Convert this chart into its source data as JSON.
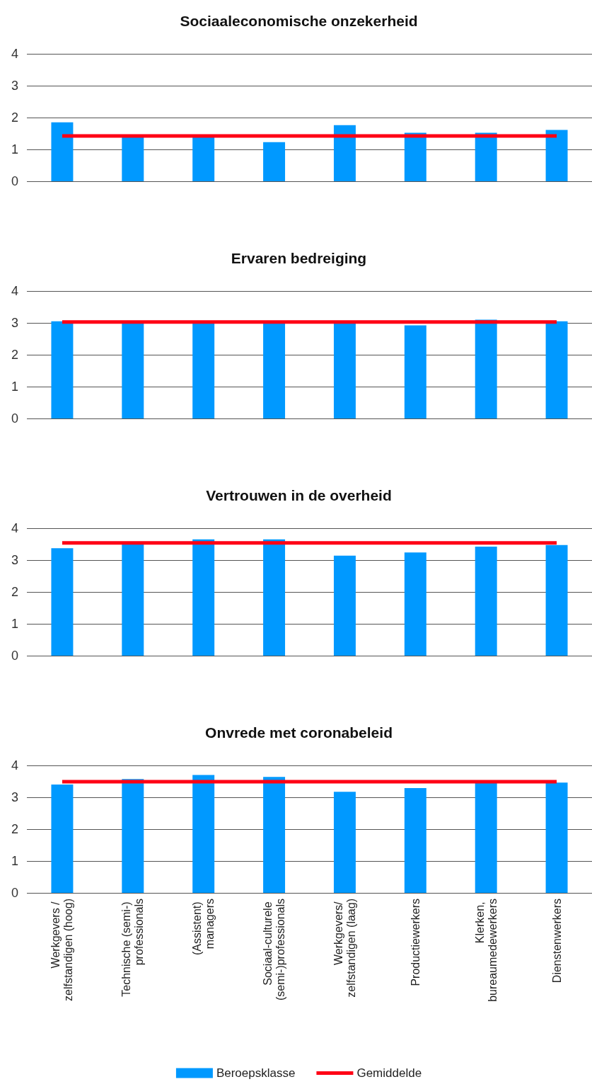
{
  "chart_data": [
    {
      "type": "bar",
      "title": "Sociaaleconomische onzekerheid",
      "categories": [
        "Werkgevers / zelfstandigen (hoog)",
        "Technische (semi-) professionals",
        "(Assistent) managers",
        "Sociaal-culturele (semi-)professionals",
        "Werkgevers/ zelfstandigen (laag)",
        "Productiewerkers",
        "Klerken, bureaumedewerkers",
        "Dienstenwerkers"
      ],
      "ylim": [
        0,
        4
      ],
      "yticks": [
        0,
        1,
        2,
        3,
        4
      ],
      "grid": "y",
      "legend": false,
      "tick_labels": "y",
      "marker": "none",
      "series": [
        {
          "color": "#0099ff",
          "values": [
            1.85,
            1.4,
            1.4,
            1.23,
            1.76,
            1.52,
            1.52,
            1.61
          ]
        },
        {
          "type": "line",
          "color": "#ff0015",
          "values": [
            1.42,
            1.42,
            1.42,
            1.42,
            1.42,
            1.42,
            1.42,
            1.42
          ]
        }
      ]
    },
    {
      "type": "bar",
      "title": "Ervaren bedreiging",
      "categories": [
        "Werkgevers / zelfstandigen (hoog)",
        "Technische (semi-) professionals",
        "(Assistent) managers",
        "Sociaal-culturele (semi-)professionals",
        "Werkgevers/ zelfstandigen (laag)",
        "Productiewerkers",
        "Klerken, bureaumedewerkers",
        "Dienstenwerkers"
      ],
      "ylim": [
        0,
        4
      ],
      "yticks": [
        0,
        1,
        2,
        3,
        4
      ],
      "grid": "y",
      "legend": false,
      "tick_labels": "y",
      "marker": "none",
      "series": [
        {
          "color": "#0099ff",
          "values": [
            3.05,
            3.0,
            3.0,
            3.0,
            3.0,
            2.92,
            3.1,
            3.05
          ]
        },
        {
          "type": "line",
          "color": "#ff0015",
          "values": [
            3.03,
            3.03,
            3.03,
            3.03,
            3.03,
            3.03,
            3.03,
            3.03
          ]
        }
      ]
    },
    {
      "type": "bar",
      "title": "Vertrouwen in de overheid",
      "categories": [
        "Werkgevers / zelfstandigen (hoog)",
        "Technische (semi-) professionals",
        "(Assistent) managers",
        "Sociaal-culturele (semi-)professionals",
        "Werkgevers/ zelfstandigen (laag)",
        "Productiewerkers",
        "Klerken, bureaumedewerkers",
        "Dienstenwerkers"
      ],
      "ylim": [
        0,
        4
      ],
      "yticks": [
        0,
        1,
        2,
        3,
        4
      ],
      "grid": "y",
      "legend": false,
      "tick_labels": "y",
      "marker": "none",
      "series": [
        {
          "color": "#0099ff",
          "values": [
            3.37,
            3.5,
            3.65,
            3.65,
            3.14,
            3.24,
            3.42,
            3.47
          ]
        },
        {
          "type": "line",
          "color": "#ff0015",
          "values": [
            3.54,
            3.54,
            3.54,
            3.54,
            3.54,
            3.54,
            3.54,
            3.54
          ]
        }
      ]
    },
    {
      "type": "bar",
      "title": "Onvrede met coronabeleid",
      "categories": [
        "Werkgevers / zelfstandigen (hoog)",
        "Technische (semi-) professionals",
        "(Assistent) managers",
        "Sociaal-culturele (semi-)professionals",
        "Werkgevers/ zelfstandigen (laag)",
        "Productiewerkers",
        "Klerken, bureaumedewerkers",
        "Dienstenwerkers"
      ],
      "ylim": [
        0,
        4
      ],
      "yticks": [
        0,
        1,
        2,
        3,
        4
      ],
      "grid": "y",
      "legend": "bottom",
      "marker": "none",
      "series": [
        {
          "name": "Beroepsklasse",
          "color": "#0099ff",
          "values": [
            3.4,
            3.57,
            3.7,
            3.64,
            3.17,
            3.29,
            3.47,
            3.46
          ]
        },
        {
          "name": "Gemiddelde",
          "type": "line",
          "color": "#ff0015",
          "values": [
            3.49,
            3.49,
            3.49,
            3.49,
            3.49,
            3.49,
            3.49,
            3.49
          ]
        }
      ]
    }
  ]
}
